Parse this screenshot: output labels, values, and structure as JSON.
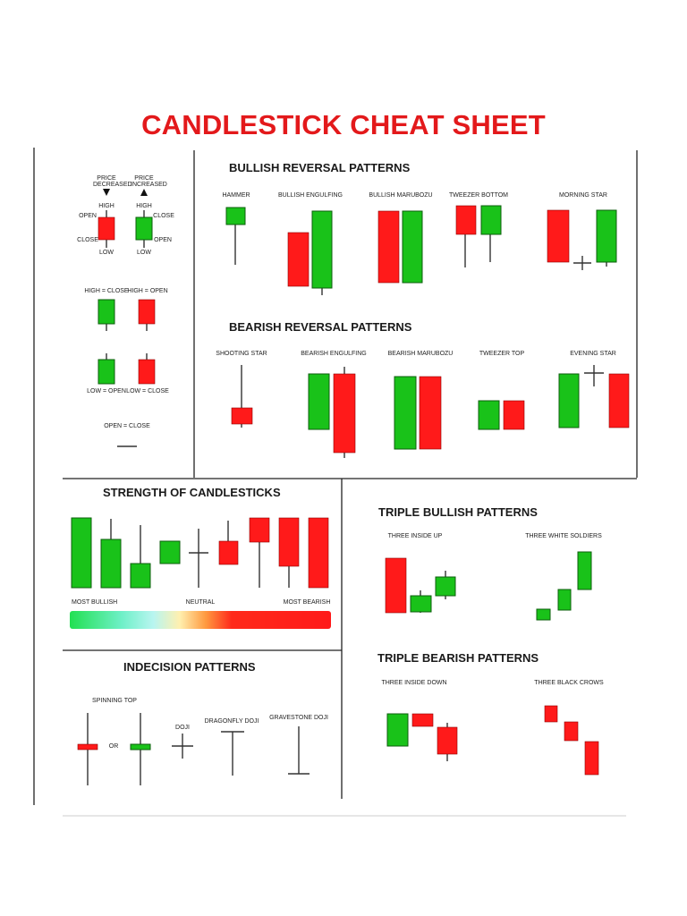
{
  "title": "CANDLESTICK CHEAT SHEET",
  "colors": {
    "title": "#e3191b",
    "bull": "#19c219",
    "bear": "#ff1a1a",
    "divider": "#222222"
  },
  "legend": {
    "price_decreased": "PRICE DECREASED",
    "price_increased": "PRICE INCREASED",
    "high": "HIGH",
    "open": "OPEN",
    "close": "CLOSE",
    "low": "LOW",
    "high_close": "HIGH = CLOSE",
    "high_open": "HIGH = OPEN",
    "low_open": "LOW = OPEN",
    "low_close": "LOW = CLOSE",
    "open_close": "OPEN = CLOSE"
  },
  "bullish_reversal": {
    "heading": "BULLISH REVERSAL PATTERNS",
    "patterns": [
      "HAMMER",
      "BULLISH ENGULFING",
      "BULLISH MARUBOZU",
      "TWEEZER BOTTOM",
      "MORNING STAR"
    ]
  },
  "bearish_reversal": {
    "heading": "BEARISH REVERSAL PATTERNS",
    "patterns": [
      "SHOOTING STAR",
      "BEARISH ENGULFING",
      "BEARISH MARUBOZU",
      "TWEEZER TOP",
      "EVENING STAR"
    ]
  },
  "strength": {
    "heading": "STRENGTH OF CANDLESTICKS",
    "most_bullish": "MOST BULLISH",
    "neutral": "NEUTRAL",
    "most_bearish": "MOST BEARISH"
  },
  "triple_bullish": {
    "heading": "TRIPLE BULLISH PATTERNS",
    "patterns": [
      "THREE INSIDE UP",
      "THREE WHITE SOLDIERS"
    ]
  },
  "triple_bearish": {
    "heading": "TRIPLE BEARISH PATTERNS",
    "patterns": [
      "THREE INSIDE DOWN",
      "THREE BLACK CROWS"
    ]
  },
  "indecision": {
    "heading": "INDECISION PATTERNS",
    "spinning_top": "SPINNING TOP",
    "or": "OR",
    "doji": "DOJI",
    "dragonfly_doji": "DRAGONFLY DOJI",
    "gravestone_doji": "GRAVESTONE DOJI"
  }
}
